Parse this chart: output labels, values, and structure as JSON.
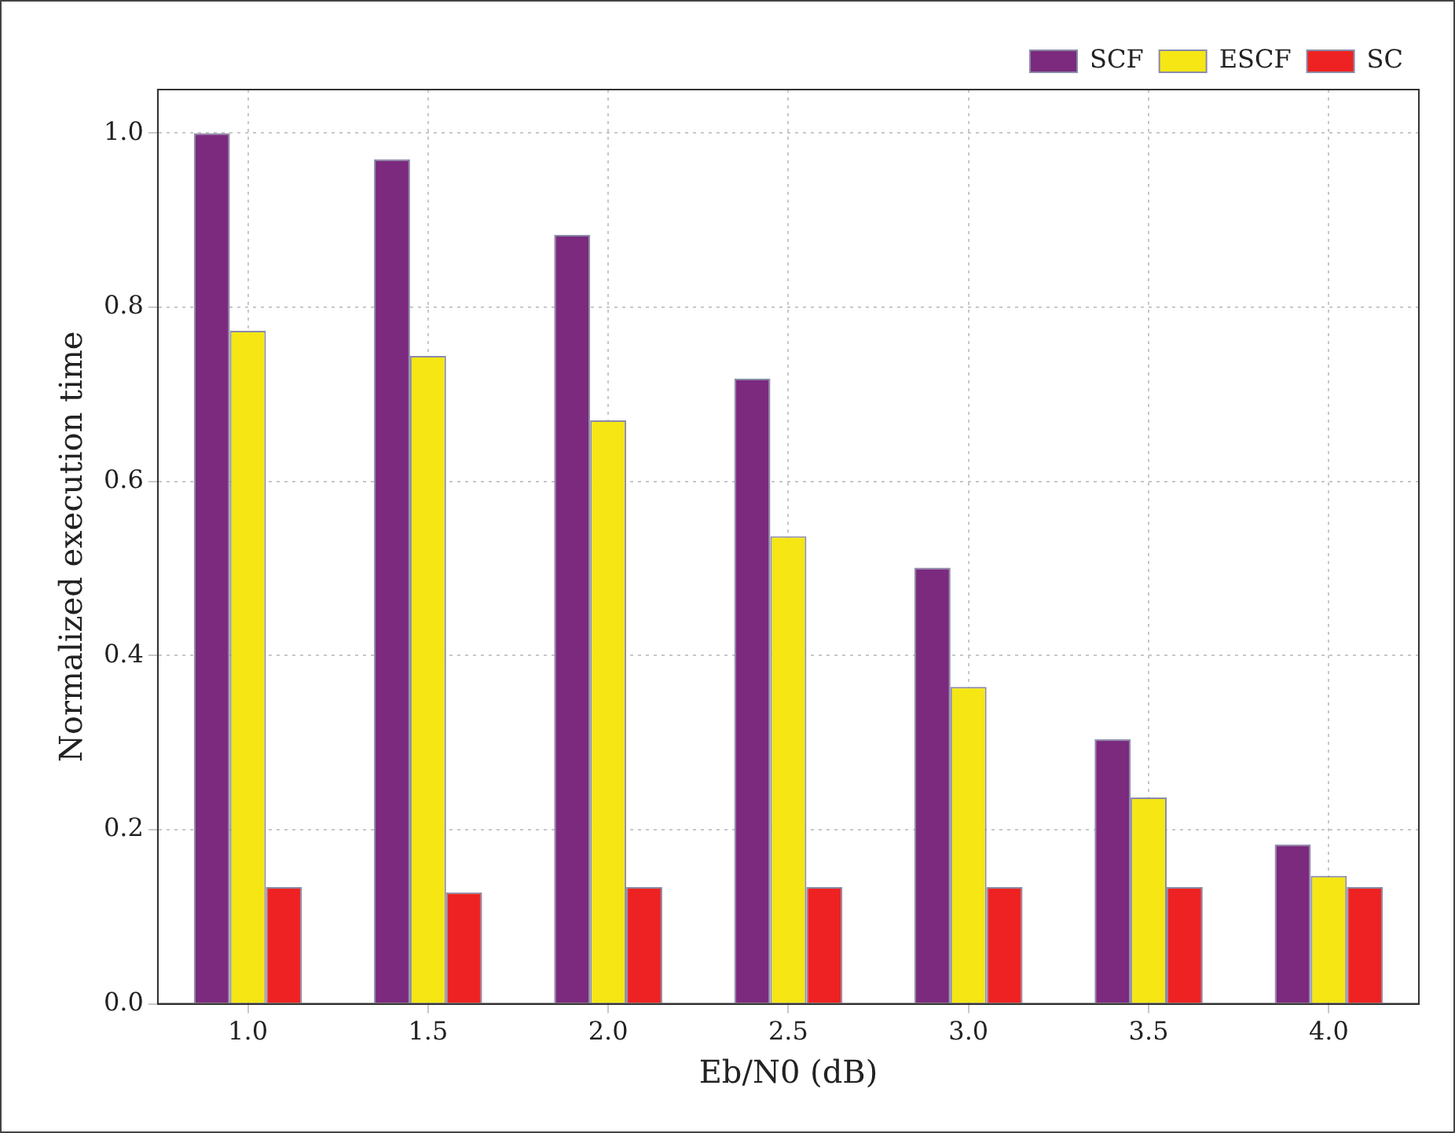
{
  "chart_data": {
    "type": "bar",
    "xlabel": "Eb/N0 (dB)",
    "ylabel": "Normalized execution time",
    "categories": [
      "1.0",
      "1.5",
      "2.0",
      "2.5",
      "3.0",
      "3.5",
      "4.0"
    ],
    "series": [
      {
        "name": "SCF",
        "color": "#7b2a7e",
        "values": [
          1.0,
          0.97,
          0.883,
          0.718,
          0.501,
          0.304,
          0.183
        ]
      },
      {
        "name": "ESCF",
        "color": "#f5e614",
        "values": [
          0.773,
          0.744,
          0.67,
          0.537,
          0.364,
          0.237,
          0.147
        ]
      },
      {
        "name": "SC",
        "color": "#ee2222",
        "values": [
          0.134,
          0.128,
          0.134,
          0.134,
          0.134,
          0.134,
          0.134
        ]
      }
    ],
    "ylim": [
      0,
      1.05
    ],
    "yticks": [
      {
        "value": 0,
        "label": "0.0"
      },
      0.2,
      0.4,
      0.6,
      0.8,
      {
        "value": 1,
        "label": "1.0"
      }
    ],
    "grid": true,
    "legend": "top right"
  }
}
